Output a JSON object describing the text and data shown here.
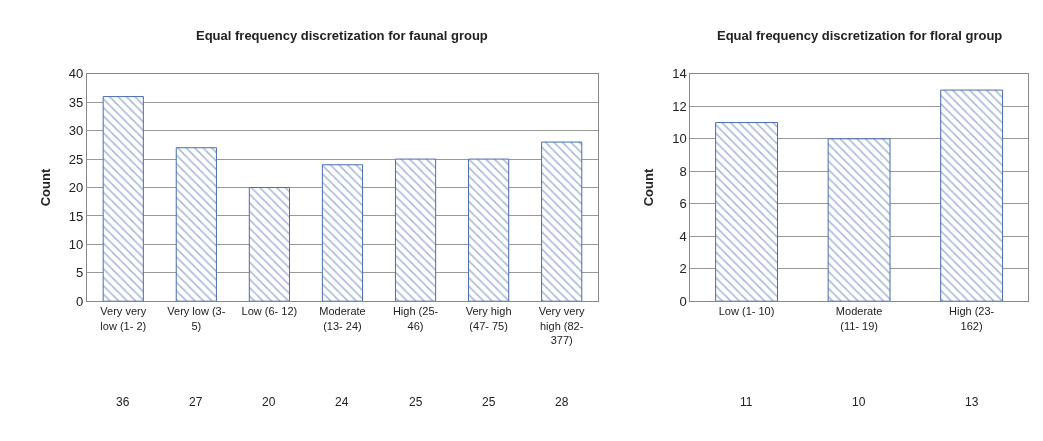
{
  "chart_data": [
    {
      "type": "bar",
      "title": "Equal frequency discretization for faunal group",
      "ylabel": "Count",
      "categories": [
        "Very very low (1- 2)",
        "Very low (3- 5)",
        "Low (6- 12)",
        "Moderate (13- 24)",
        "High (25- 46)",
        "Very high (47- 75)",
        "Very very high (82- 377)"
      ],
      "values": [
        36,
        27,
        20,
        24,
        25,
        25,
        28
      ],
      "color": "#4a6cb3",
      "ylim": [
        0,
        40
      ],
      "yticks": [
        0,
        5,
        10,
        15,
        20,
        25,
        30,
        35,
        40
      ],
      "grid": "y",
      "data_labels": true,
      "legend": false
    },
    {
      "type": "bar",
      "title": "Equal frequency discretization for floral group",
      "ylabel": "Count",
      "categories": [
        "Low (1- 10)",
        "Moderate (11- 19)",
        "High (23- 162)"
      ],
      "values": [
        11,
        10,
        13
      ],
      "color": "#4a6cb3",
      "ylim": [
        0,
        14
      ],
      "yticks": [
        0,
        2,
        4,
        6,
        8,
        10,
        12,
        14
      ],
      "grid": "y",
      "data_labels": true,
      "legend": false
    }
  ]
}
